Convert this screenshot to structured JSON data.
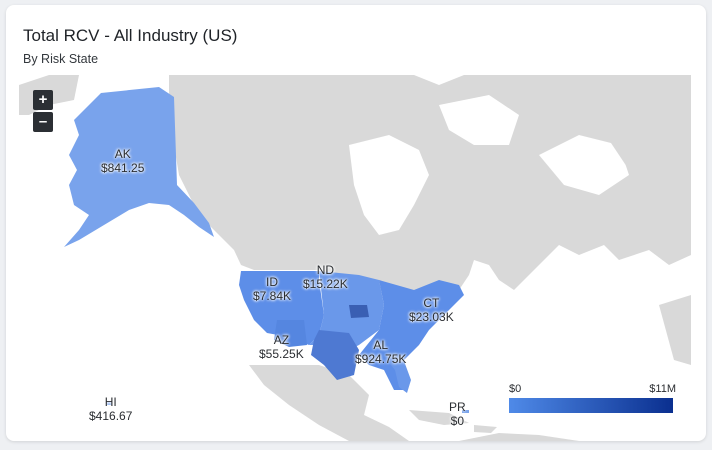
{
  "title": "Total RCV - All Industry (US)",
  "subtitle": "By Risk State",
  "zoom": {
    "in_label": "+",
    "out_label": "–"
  },
  "legend": {
    "min": "$0",
    "max": "$11M",
    "color_min": "#4f8ae8",
    "color_max": "#0a2f8f"
  },
  "colors": {
    "land": "#d9d9d9",
    "state": "#5d8ee8",
    "state_light": "#79a3ec",
    "state_dark": "#4e79d2",
    "state_darkest": "#3a5fb3",
    "water": "#ffffff"
  },
  "labels": {
    "ak": {
      "code": "AK",
      "value": "$841.25"
    },
    "id": {
      "code": "ID",
      "value": "$7.84K"
    },
    "nd": {
      "code": "ND",
      "value": "$15.22K"
    },
    "ct": {
      "code": "CT",
      "value": "$23.03K"
    },
    "az": {
      "code": "AZ",
      "value": "$55.25K"
    },
    "al": {
      "code": "AL",
      "value": "$924.75K"
    },
    "hi": {
      "code": "HI",
      "value": "$416.67"
    },
    "pr": {
      "code": "PR",
      "value": "$0"
    }
  }
}
